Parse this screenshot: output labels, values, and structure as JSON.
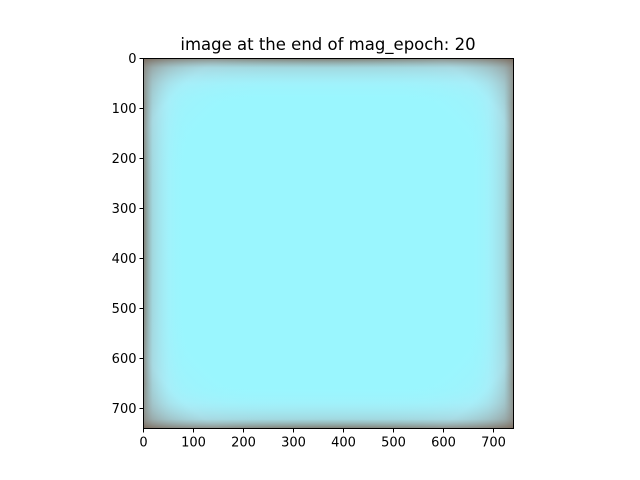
{
  "chart_data": {
    "type": "heatmap",
    "title": "image at the end of mag_epoch: 20",
    "xlabel": "",
    "ylabel": "",
    "xlim": [
      0,
      740
    ],
    "ylim": [
      740,
      0
    ],
    "x_ticks": [
      0,
      100,
      200,
      300,
      400,
      500,
      600,
      700
    ],
    "y_ticks": [
      0,
      100,
      200,
      300,
      400,
      500,
      600,
      700
    ],
    "x_tick_labels": [
      "0",
      "100",
      "200",
      "300",
      "400",
      "500",
      "600",
      "700"
    ],
    "y_tick_labels": [
      "0",
      "100",
      "200",
      "300",
      "400",
      "500",
      "600",
      "700"
    ],
    "image": {
      "center_color": "#9af6fe",
      "edge_glow_color": "#b9e3f1",
      "border_color": "#7a6a5c"
    },
    "grid": false,
    "legend": "none"
  }
}
